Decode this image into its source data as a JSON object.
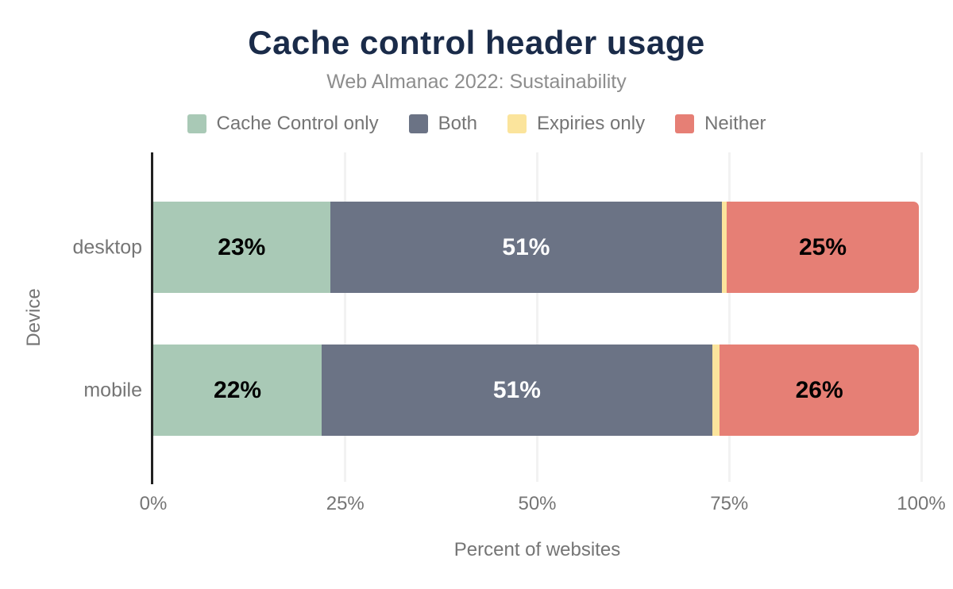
{
  "title": "Cache control header usage",
  "subtitle": "Web Almanac 2022: Sustainability",
  "colors": {
    "title_navy": "#1a2b49",
    "axis_line": "#212121",
    "gridline": "#f2f2f2",
    "muted_text": "#757575",
    "cache_control_only": "#a9c9b6",
    "both": "#6b7385",
    "expiries_only": "#fbe49c",
    "neither": "#e67f75"
  },
  "legend": [
    {
      "label": "Cache Control only",
      "color": "#a9c9b6"
    },
    {
      "label": "Both",
      "color": "#6b7385"
    },
    {
      "label": "Expiries only",
      "color": "#fbe49c"
    },
    {
      "label": "Neither",
      "color": "#e67f75"
    }
  ],
  "chart_data": {
    "type": "bar",
    "orientation": "horizontal",
    "stacked": true,
    "title": "Cache control header usage",
    "subtitle": "Web Almanac 2022: Sustainability",
    "categories": [
      "desktop",
      "mobile"
    ],
    "series": [
      {
        "name": "Cache Control only",
        "color": "#a9c9b6",
        "label_color": "#000000",
        "values": [
          23,
          22
        ]
      },
      {
        "name": "Both",
        "color": "#6b7385",
        "label_color": "#ffffff",
        "values": [
          51,
          51
        ]
      },
      {
        "name": "Expiries only",
        "color": "#fbe49c",
        "label_color": "#000000",
        "values": [
          0.6,
          1
        ]
      },
      {
        "name": "Neither",
        "color": "#e67f75",
        "label_color": "#000000",
        "values": [
          25,
          26
        ]
      }
    ],
    "data_labels": [
      [
        "23%",
        "51%",
        "",
        "25%"
      ],
      [
        "22%",
        "51%",
        "",
        "26%"
      ]
    ],
    "xlabel": "Percent of websites",
    "ylabel": "Device",
    "x_ticks": [
      "0%",
      "25%",
      "50%",
      "75%",
      "100%"
    ],
    "xlim": [
      0,
      100
    ],
    "grid": "vertical",
    "legend_position": "top"
  }
}
